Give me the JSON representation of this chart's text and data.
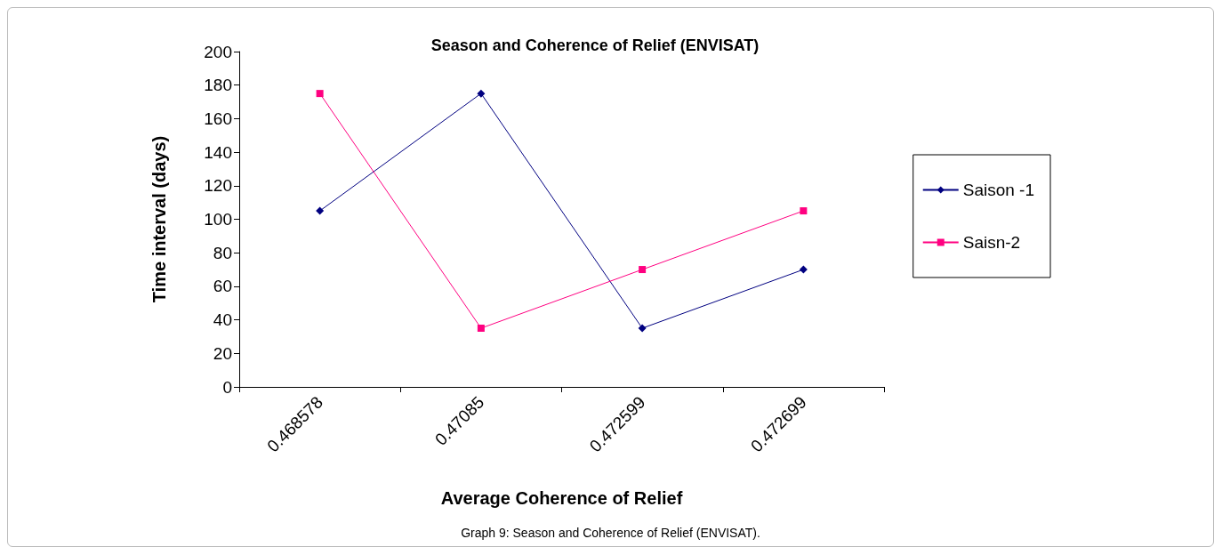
{
  "chart_data": {
    "type": "line",
    "title": "Season and Coherence of Relief (ENVISAT)",
    "xlabel": "Average Coherence of Relief",
    "ylabel": "Time interval (days)",
    "categories": [
      "0.468578",
      "0.47085",
      "0.472599",
      "0.472699"
    ],
    "series": [
      {
        "name": "Saison -1",
        "color": "#000080",
        "marker": "diamond",
        "values": [
          105,
          175,
          35,
          70
        ]
      },
      {
        "name": "Saisn-2",
        "color": "#ff0080",
        "marker": "square",
        "values": [
          175,
          35,
          70,
          105
        ]
      }
    ],
    "ylim": [
      0,
      200
    ],
    "yticks": [
      0,
      20,
      40,
      60,
      80,
      100,
      120,
      140,
      160,
      180,
      200
    ],
    "grid": false,
    "legend": "right",
    "line_style": "solid",
    "annotations": [
      "Graph 9: Season and Coherence of Relief (ENVISAT)."
    ]
  }
}
